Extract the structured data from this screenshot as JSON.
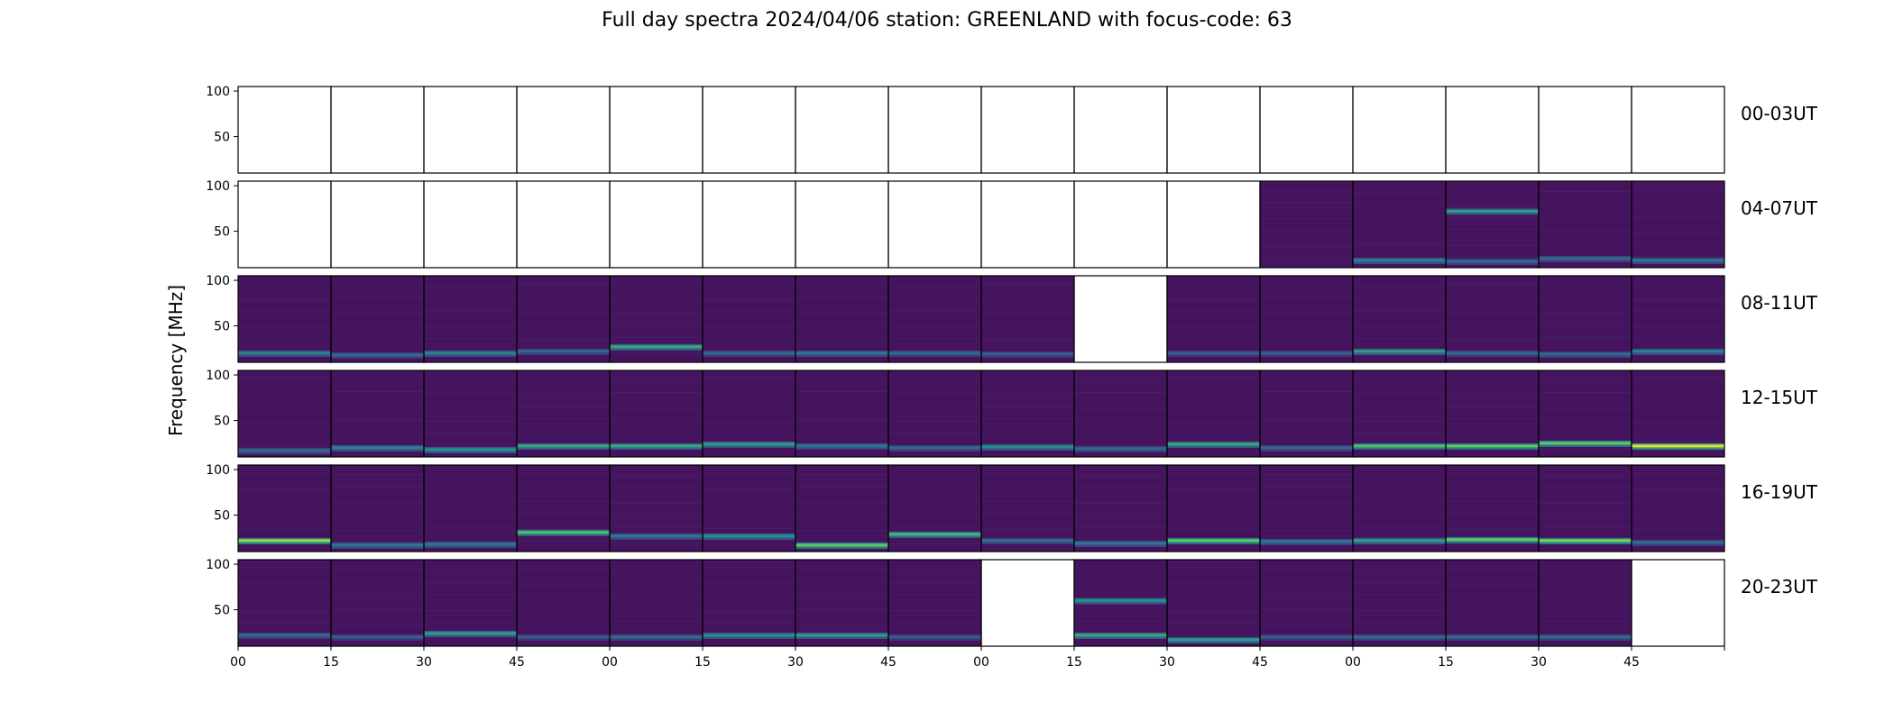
{
  "chart_data": {
    "type": "heatmap",
    "title": "Full day spectra 2024/04/06 station: GREENLAND with focus-code: 63",
    "ylabel": "Frequency [MHz]",
    "xlabel": "",
    "ylim": [
      10,
      105
    ],
    "yticks": [
      "100",
      "50"
    ],
    "xticks": [
      "00",
      "15",
      "30",
      "45",
      "00",
      "15",
      "30",
      "45",
      "00",
      "15",
      "30",
      "45",
      "00",
      "15",
      "30",
      "45",
      ""
    ],
    "colormap": "viridis",
    "rows": [
      {
        "label": "00-03UT",
        "cells": [
          0,
          0,
          0,
          0,
          0,
          0,
          0,
          0,
          0,
          0,
          0,
          0,
          0,
          0,
          0,
          0
        ],
        "bands": [
          [],
          [],
          [],
          [],
          [],
          [],
          [],
          [],
          [],
          [],
          [],
          [],
          [],
          [],
          [],
          []
        ]
      },
      {
        "label": "04-07UT",
        "cells": [
          0,
          0,
          0,
          0,
          0,
          0,
          0,
          0,
          0,
          0,
          0,
          1,
          1,
          1,
          1,
          1
        ],
        "bands": [
          [],
          [],
          [],
          [],
          [],
          [],
          [],
          [],
          [],
          [],
          [],
          [],
          [
            [
              18,
              0.45
            ]
          ],
          [
            [
              72,
              0.55
            ],
            [
              17,
              0.35
            ]
          ],
          [
            [
              20,
              0.35
            ]
          ],
          [
            [
              18,
              0.4
            ]
          ]
        ]
      },
      {
        "label": "08-11UT",
        "cells": [
          1,
          1,
          1,
          1,
          1,
          1,
          1,
          1,
          1,
          0,
          1,
          1,
          1,
          1,
          1,
          1
        ],
        "bands": [
          [
            [
              20,
              0.45
            ]
          ],
          [
            [
              18,
              0.35
            ]
          ],
          [
            [
              20,
              0.45
            ]
          ],
          [
            [
              22,
              0.35
            ]
          ],
          [
            [
              27,
              0.6
            ]
          ],
          [
            [
              20,
              0.35
            ]
          ],
          [
            [
              20,
              0.4
            ]
          ],
          [
            [
              20,
              0.35
            ]
          ],
          [
            [
              19,
              0.3
            ]
          ],
          [],
          [
            [
              20,
              0.3
            ]
          ],
          [
            [
              20,
              0.3
            ]
          ],
          [
            [
              22,
              0.55
            ]
          ],
          [
            [
              20,
              0.35
            ]
          ],
          [
            [
              19,
              0.35
            ]
          ],
          [
            [
              22,
              0.45
            ]
          ]
        ]
      },
      {
        "label": "12-15UT",
        "cells": [
          1,
          1,
          1,
          1,
          1,
          1,
          1,
          1,
          1,
          1,
          1,
          1,
          1,
          1,
          1,
          1
        ],
        "bands": [
          [
            [
              17,
              0.35
            ]
          ],
          [
            [
              20,
              0.45
            ]
          ],
          [
            [
              18,
              0.5
            ]
          ],
          [
            [
              22,
              0.6
            ]
          ],
          [
            [
              22,
              0.6
            ]
          ],
          [
            [
              24,
              0.55
            ]
          ],
          [
            [
              22,
              0.4
            ]
          ],
          [
            [
              20,
              0.35
            ]
          ],
          [
            [
              21,
              0.5
            ]
          ],
          [
            [
              19,
              0.35
            ]
          ],
          [
            [
              24,
              0.6
            ]
          ],
          [
            [
              20,
              0.35
            ]
          ],
          [
            [
              22,
              0.7
            ]
          ],
          [
            [
              22,
              0.75
            ]
          ],
          [
            [
              25,
              0.75
            ]
          ],
          [
            [
              22,
              0.95
            ]
          ]
        ]
      },
      {
        "label": "16-19UT",
        "cells": [
          1,
          1,
          1,
          1,
          1,
          1,
          1,
          1,
          1,
          1,
          1,
          1,
          1,
          1,
          1,
          1
        ],
        "bands": [
          [
            [
              22,
              0.85
            ]
          ],
          [
            [
              17,
              0.4
            ]
          ],
          [
            [
              18,
              0.4
            ]
          ],
          [
            [
              31,
              0.7
            ]
          ],
          [
            [
              27,
              0.4
            ]
          ],
          [
            [
              27,
              0.5
            ]
          ],
          [
            [
              17,
              0.75
            ]
          ],
          [
            [
              29,
              0.65
            ]
          ],
          [
            [
              22,
              0.35
            ]
          ],
          [
            [
              19,
              0.4
            ]
          ],
          [
            [
              22,
              0.75
            ]
          ],
          [
            [
              21,
              0.4
            ]
          ],
          [
            [
              22,
              0.55
            ]
          ],
          [
            [
              23,
              0.75
            ]
          ],
          [
            [
              22,
              0.8
            ]
          ],
          [
            [
              20,
              0.35
            ]
          ]
        ]
      },
      {
        "label": "20-23UT",
        "cells": [
          1,
          1,
          1,
          1,
          1,
          1,
          1,
          1,
          0,
          1,
          1,
          1,
          1,
          1,
          1,
          0
        ],
        "bands": [
          [
            [
              22,
              0.35
            ]
          ],
          [
            [
              20,
              0.3
            ]
          ],
          [
            [
              24,
              0.55
            ]
          ],
          [
            [
              20,
              0.3
            ]
          ],
          [
            [
              20,
              0.35
            ]
          ],
          [
            [
              22,
              0.5
            ]
          ],
          [
            [
              22,
              0.55
            ]
          ],
          [
            [
              20,
              0.3
            ]
          ],
          [],
          [
            [
              22,
              0.6
            ],
            [
              60,
              0.5
            ]
          ],
          [
            [
              17,
              0.55
            ]
          ],
          [
            [
              20,
              0.3
            ]
          ],
          [
            [
              20,
              0.35
            ]
          ],
          [
            [
              20,
              0.35
            ]
          ],
          [
            [
              20,
              0.35
            ]
          ],
          []
        ]
      }
    ]
  }
}
